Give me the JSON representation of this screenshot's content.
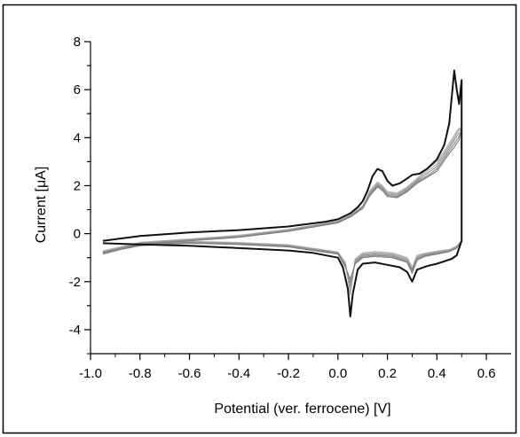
{
  "chart_data": {
    "type": "line",
    "xlabel": "Potential (ver. ferrocene) [V]",
    "ylabel": "Current [μA]",
    "xlim": [
      -1.0,
      0.7
    ],
    "ylim": [
      -5,
      8
    ],
    "xticks": [
      -1.0,
      -0.8,
      -0.6,
      -0.4,
      -0.2,
      0.0,
      0.2,
      0.4,
      0.6
    ],
    "xtick_labels": [
      "-1.0",
      "-0.8",
      "-0.6",
      "-0.4",
      "-0.2",
      "0.0",
      "0.2",
      "0.4",
      "0.6"
    ],
    "yticks": [
      -4,
      -2,
      0,
      2,
      4,
      6,
      8
    ],
    "ytick_labels": [
      "-4",
      "-2",
      "0",
      "2",
      "4",
      "6",
      "8"
    ],
    "grid": false,
    "legend": "none",
    "series": [
      {
        "color": "#111111",
        "x": [
          -0.95,
          -0.8,
          -0.6,
          -0.4,
          -0.2,
          -0.05,
          0.0,
          0.05,
          0.08,
          0.1,
          0.12,
          0.14,
          0.16,
          0.18,
          0.2,
          0.22,
          0.25,
          0.28,
          0.3,
          0.33,
          0.36,
          0.4,
          0.43,
          0.45,
          0.47,
          0.48,
          0.49,
          0.5,
          0.5,
          0.49,
          0.48,
          0.46,
          0.43,
          0.4,
          0.36,
          0.32,
          0.3,
          0.28,
          0.25,
          0.2,
          0.15,
          0.1,
          0.08,
          0.06,
          0.05,
          0.04,
          0.02,
          0.0,
          -0.1,
          -0.2,
          -0.4,
          -0.6,
          -0.8,
          -0.95
        ],
        "y": [
          -0.3,
          -0.1,
          0.05,
          0.15,
          0.3,
          0.5,
          0.6,
          0.85,
          1.1,
          1.35,
          1.8,
          2.4,
          2.7,
          2.6,
          2.2,
          2.0,
          2.1,
          2.3,
          2.45,
          2.5,
          2.7,
          3.1,
          3.7,
          4.6,
          6.8,
          6.0,
          5.4,
          6.4,
          -0.3,
          -0.6,
          -0.9,
          -1.05,
          -1.15,
          -1.25,
          -1.35,
          -1.5,
          -2.0,
          -1.6,
          -1.4,
          -1.3,
          -1.2,
          -1.25,
          -1.5,
          -2.5,
          -3.45,
          -2.3,
          -1.4,
          -1.0,
          -0.8,
          -0.7,
          -0.6,
          -0.5,
          -0.45,
          -0.4
        ]
      },
      {
        "color": "#808080",
        "x": [
          -0.95,
          -0.8,
          -0.6,
          -0.4,
          -0.2,
          0.0,
          0.05,
          0.1,
          0.13,
          0.16,
          0.18,
          0.2,
          0.24,
          0.28,
          0.32,
          0.36,
          0.4,
          0.44,
          0.47,
          0.49,
          0.5,
          0.5,
          0.48,
          0.45,
          0.4,
          0.35,
          0.32,
          0.3,
          0.28,
          0.22,
          0.15,
          0.1,
          0.07,
          0.05,
          0.03,
          0.0,
          -0.2,
          -0.4,
          -0.6,
          -0.8,
          -0.95
        ],
        "y": [
          -0.85,
          -0.45,
          -0.3,
          -0.15,
          0.1,
          0.45,
          0.7,
          1.05,
          1.6,
          1.95,
          1.8,
          1.55,
          1.5,
          1.75,
          2.1,
          2.35,
          2.6,
          3.2,
          3.6,
          3.9,
          4.4,
          -0.3,
          -0.6,
          -0.75,
          -0.85,
          -0.95,
          -1.1,
          -1.65,
          -1.2,
          -1.0,
          -0.95,
          -1.0,
          -1.25,
          -1.9,
          -1.4,
          -0.85,
          -0.55,
          -0.45,
          -0.4,
          -0.5,
          -0.8
        ]
      },
      {
        "color": "#8c8c8c",
        "x": [
          -0.95,
          -0.8,
          -0.6,
          -0.4,
          -0.2,
          0.0,
          0.05,
          0.1,
          0.13,
          0.16,
          0.18,
          0.2,
          0.24,
          0.28,
          0.32,
          0.36,
          0.4,
          0.44,
          0.47,
          0.49,
          0.5,
          0.5,
          0.48,
          0.45,
          0.4,
          0.35,
          0.32,
          0.3,
          0.28,
          0.22,
          0.15,
          0.1,
          0.07,
          0.05,
          0.03,
          0.0,
          -0.2,
          -0.4,
          -0.6,
          -0.8,
          -0.95
        ],
        "y": [
          -0.8,
          -0.42,
          -0.28,
          -0.13,
          0.12,
          0.47,
          0.72,
          1.08,
          1.65,
          2.0,
          1.85,
          1.6,
          1.55,
          1.8,
          2.15,
          2.4,
          2.7,
          3.3,
          3.75,
          4.05,
          4.3,
          -0.3,
          -0.58,
          -0.72,
          -0.82,
          -0.92,
          -1.05,
          -1.55,
          -1.15,
          -0.95,
          -0.9,
          -0.95,
          -1.2,
          -2.05,
          -1.35,
          -0.82,
          -0.52,
          -0.43,
          -0.38,
          -0.48,
          -0.78
        ]
      },
      {
        "color": "#999999",
        "x": [
          -0.95,
          -0.8,
          -0.6,
          -0.4,
          -0.2,
          0.0,
          0.05,
          0.1,
          0.13,
          0.16,
          0.18,
          0.2,
          0.24,
          0.28,
          0.32,
          0.36,
          0.4,
          0.44,
          0.47,
          0.49,
          0.5,
          0.5,
          0.48,
          0.45,
          0.4,
          0.35,
          0.32,
          0.3,
          0.28,
          0.22,
          0.15,
          0.1,
          0.07,
          0.05,
          0.03,
          0.0,
          -0.2,
          -0.4,
          -0.6,
          -0.8,
          -0.95
        ],
        "y": [
          -0.78,
          -0.4,
          -0.26,
          -0.11,
          0.14,
          0.49,
          0.74,
          1.1,
          1.7,
          2.05,
          1.9,
          1.65,
          1.6,
          1.85,
          2.2,
          2.5,
          2.8,
          3.4,
          3.9,
          4.2,
          4.1,
          -0.3,
          -0.56,
          -0.7,
          -0.79,
          -0.88,
          -1.0,
          -1.5,
          -1.1,
          -0.9,
          -0.85,
          -0.9,
          -1.15,
          -2.2,
          -1.3,
          -0.8,
          -0.5,
          -0.41,
          -0.36,
          -0.46,
          -0.76
        ]
      },
      {
        "color": "#a6a6a6",
        "x": [
          -0.95,
          -0.8,
          -0.6,
          -0.4,
          -0.2,
          0.0,
          0.05,
          0.1,
          0.13,
          0.16,
          0.18,
          0.2,
          0.24,
          0.28,
          0.32,
          0.36,
          0.4,
          0.44,
          0.47,
          0.49,
          0.5,
          0.5,
          0.48,
          0.45,
          0.4,
          0.35,
          0.32,
          0.3,
          0.28,
          0.22,
          0.15,
          0.1,
          0.07,
          0.05,
          0.03,
          0.0,
          -0.2,
          -0.4,
          -0.6,
          -0.8,
          -0.95
        ],
        "y": [
          -0.75,
          -0.38,
          -0.24,
          -0.09,
          0.16,
          0.51,
          0.76,
          1.13,
          1.75,
          2.1,
          1.95,
          1.7,
          1.65,
          1.9,
          2.25,
          2.6,
          2.9,
          3.5,
          4.0,
          4.35,
          4.2,
          -0.3,
          -0.54,
          -0.68,
          -0.76,
          -0.85,
          -0.95,
          -1.45,
          -1.05,
          -0.85,
          -0.8,
          -0.85,
          -1.1,
          -2.4,
          -1.25,
          -0.78,
          -0.48,
          -0.39,
          -0.34,
          -0.44,
          -0.74
        ]
      },
      {
        "color": "#b3b3b3",
        "x": [
          -0.95,
          -0.8,
          -0.6,
          -0.4,
          -0.2,
          0.0,
          0.05,
          0.1,
          0.13,
          0.16,
          0.18,
          0.2,
          0.24,
          0.28,
          0.32,
          0.36,
          0.4,
          0.44,
          0.47,
          0.49,
          0.5,
          0.5,
          0.48,
          0.45,
          0.4,
          0.35,
          0.32,
          0.3,
          0.28,
          0.22,
          0.15,
          0.1,
          0.07,
          0.05,
          0.03,
          0.0,
          -0.2,
          -0.4,
          -0.6,
          -0.8,
          -0.95
        ],
        "y": [
          -0.72,
          -0.36,
          -0.22,
          -0.07,
          0.18,
          0.53,
          0.78,
          1.16,
          1.8,
          2.15,
          2.0,
          1.75,
          1.7,
          1.95,
          2.3,
          2.7,
          3.0,
          3.6,
          4.1,
          4.4,
          4.35,
          -0.3,
          -0.52,
          -0.66,
          -0.73,
          -0.82,
          -0.9,
          -1.4,
          -1.0,
          -0.8,
          -0.75,
          -0.8,
          -1.05,
          -2.55,
          -1.2,
          -0.76,
          -0.46,
          -0.37,
          -0.32,
          -0.42,
          -0.72
        ]
      }
    ]
  }
}
